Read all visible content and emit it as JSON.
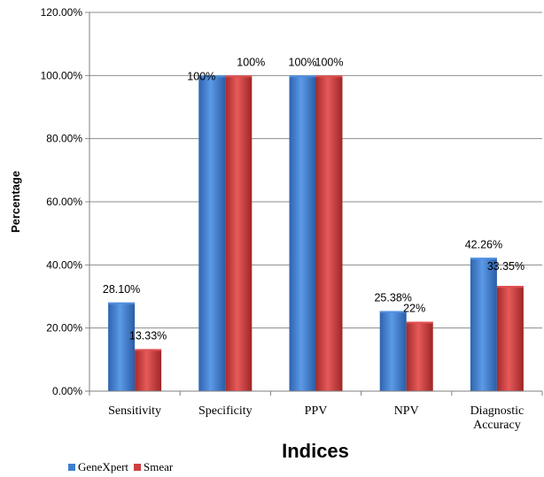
{
  "chart_data": {
    "type": "bar",
    "categories": [
      "Sensitivity",
      "Specificity",
      "PPV",
      "NPV",
      "Diagnostic\nAccuracy"
    ],
    "series": [
      {
        "name": "GeneXpert",
        "values": [
          28.1,
          100,
          100,
          25.38,
          42.26
        ],
        "labels": [
          "28.10%",
          "100%",
          "100%",
          "25.38%",
          "42.26%"
        ],
        "color": "#3f7fcf"
      },
      {
        "name": "Smear",
        "values": [
          13.33,
          100,
          100,
          22,
          33.35
        ],
        "labels": [
          "13.33%",
          "100%",
          "100%",
          "22%",
          "33.35%"
        ],
        "color": "#cf3f3f"
      }
    ],
    "yticks": [
      "0.00%",
      "20.00%",
      "40.00%",
      "60.00%",
      "80.00%",
      "100.00%",
      "120.00%"
    ],
    "ylim": [
      0,
      120
    ],
    "xlabel": "Indices",
    "ylabel": "Percentage",
    "grid": true,
    "legend_position": "bottom-left"
  }
}
